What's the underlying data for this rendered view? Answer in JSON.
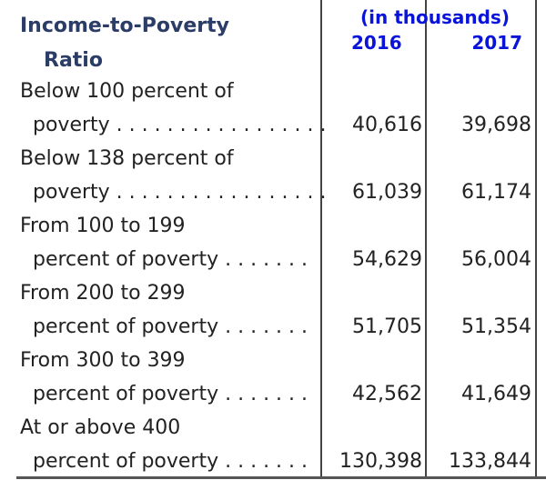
{
  "header": {
    "title_line1": "Income-to-Poverty",
    "title_line2": "Ratio",
    "units": "(in thousands)",
    "col1": "2016",
    "col2": "2017"
  },
  "rows": [
    {
      "line1": "Below 100 percent of",
      "line2": "poverty . . . . . . . . . . . . . . . . .",
      "v2016": "40,616",
      "v2017": "39,698"
    },
    {
      "line1": "Below 138 percent of",
      "line2": "poverty . . . . . . . . . . . . . . . . .",
      "v2016": "61,039",
      "v2017": "61,174"
    },
    {
      "line1": "From 100 to 199",
      "line2": "percent of poverty . . . . . . .",
      "v2016": "54,629",
      "v2017": "56,004"
    },
    {
      "line1": "From 200 to 299",
      "line2": "percent of poverty . . . . . . .",
      "v2016": "51,705",
      "v2017": "51,354"
    },
    {
      "line1": "From 300 to 399",
      "line2": "percent of poverty . . . . . . .",
      "v2016": "42,562",
      "v2017": "41,649"
    },
    {
      "line1": "At or above 400",
      "line2": "percent of poverty . . . . . . .",
      "v2016": "130,398",
      "v2017": "133,844"
    }
  ],
  "colors": {
    "title": "#2b3d66",
    "header": "#0a14d8",
    "text": "#222222"
  }
}
